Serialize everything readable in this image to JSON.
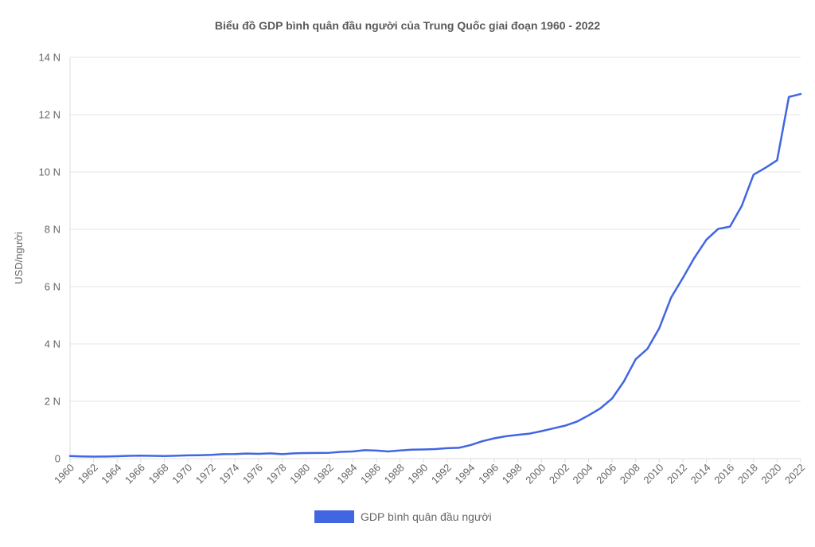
{
  "chart_data": {
    "type": "line",
    "title": "Biểu đồ GDP bình quân đầu người của Trung Quốc giai đoạn 1960 - 2022",
    "xlabel": "",
    "ylabel": "USD/người",
    "ylim": [
      0,
      14000
    ],
    "y_ticks": [
      {
        "value": 0,
        "label": "0"
      },
      {
        "value": 2000,
        "label": "2 N"
      },
      {
        "value": 4000,
        "label": "4 N"
      },
      {
        "value": 6000,
        "label": "6 N"
      },
      {
        "value": 8000,
        "label": "8 N"
      },
      {
        "value": 10000,
        "label": "10 N"
      },
      {
        "value": 12000,
        "label": "12 N"
      },
      {
        "value": 14000,
        "label": "14 N"
      }
    ],
    "x_tick_labels": [
      "1960",
      "1962",
      "1964",
      "1966",
      "1968",
      "1970",
      "1972",
      "1974",
      "1976",
      "1978",
      "1980",
      "1982",
      "1984",
      "1986",
      "1988",
      "1990",
      "1992",
      "1994",
      "1996",
      "1998",
      "2000",
      "2002",
      "2004",
      "2006",
      "2008",
      "2010",
      "2012",
      "2014",
      "2016",
      "2018",
      "2020",
      "2022"
    ],
    "grid": true,
    "legend_position": "bottom",
    "colors": {
      "series": "#4166e1",
      "grid": "#e6e6e6"
    },
    "x": [
      1960,
      1961,
      1962,
      1963,
      1964,
      1965,
      1966,
      1967,
      1968,
      1969,
      1970,
      1971,
      1972,
      1973,
      1974,
      1975,
      1976,
      1977,
      1978,
      1979,
      1980,
      1981,
      1982,
      1983,
      1984,
      1985,
      1986,
      1987,
      1988,
      1989,
      1990,
      1991,
      1992,
      1993,
      1994,
      1995,
      1996,
      1997,
      1998,
      1999,
      2000,
      2001,
      2002,
      2003,
      2004,
      2005,
      2006,
      2007,
      2008,
      2009,
      2010,
      2011,
      2012,
      2013,
      2014,
      2015,
      2016,
      2017,
      2018,
      2019,
      2020,
      2021,
      2022
    ],
    "series": [
      {
        "name": "GDP bình quân đầu người",
        "values": [
          90,
          76,
          70,
          74,
          85,
          98,
          104,
          97,
          91,
          100,
          113,
          118,
          132,
          157,
          160,
          178,
          165,
          185,
          156,
          184,
          195,
          197,
          203,
          237,
          251,
          294,
          282,
          251,
          284,
          311,
          318,
          333,
          366,
          377,
          473,
          610,
          709,
          782,
          829,
          873,
          959,
          1053,
          1149,
          1289,
          1509,
          1753,
          2099,
          2694,
          3468,
          3832,
          4550,
          5614,
          6301,
          7020,
          7636,
          8016,
          8094,
          8817,
          9905,
          10144,
          10409,
          12618,
          12720
        ]
      }
    ]
  }
}
